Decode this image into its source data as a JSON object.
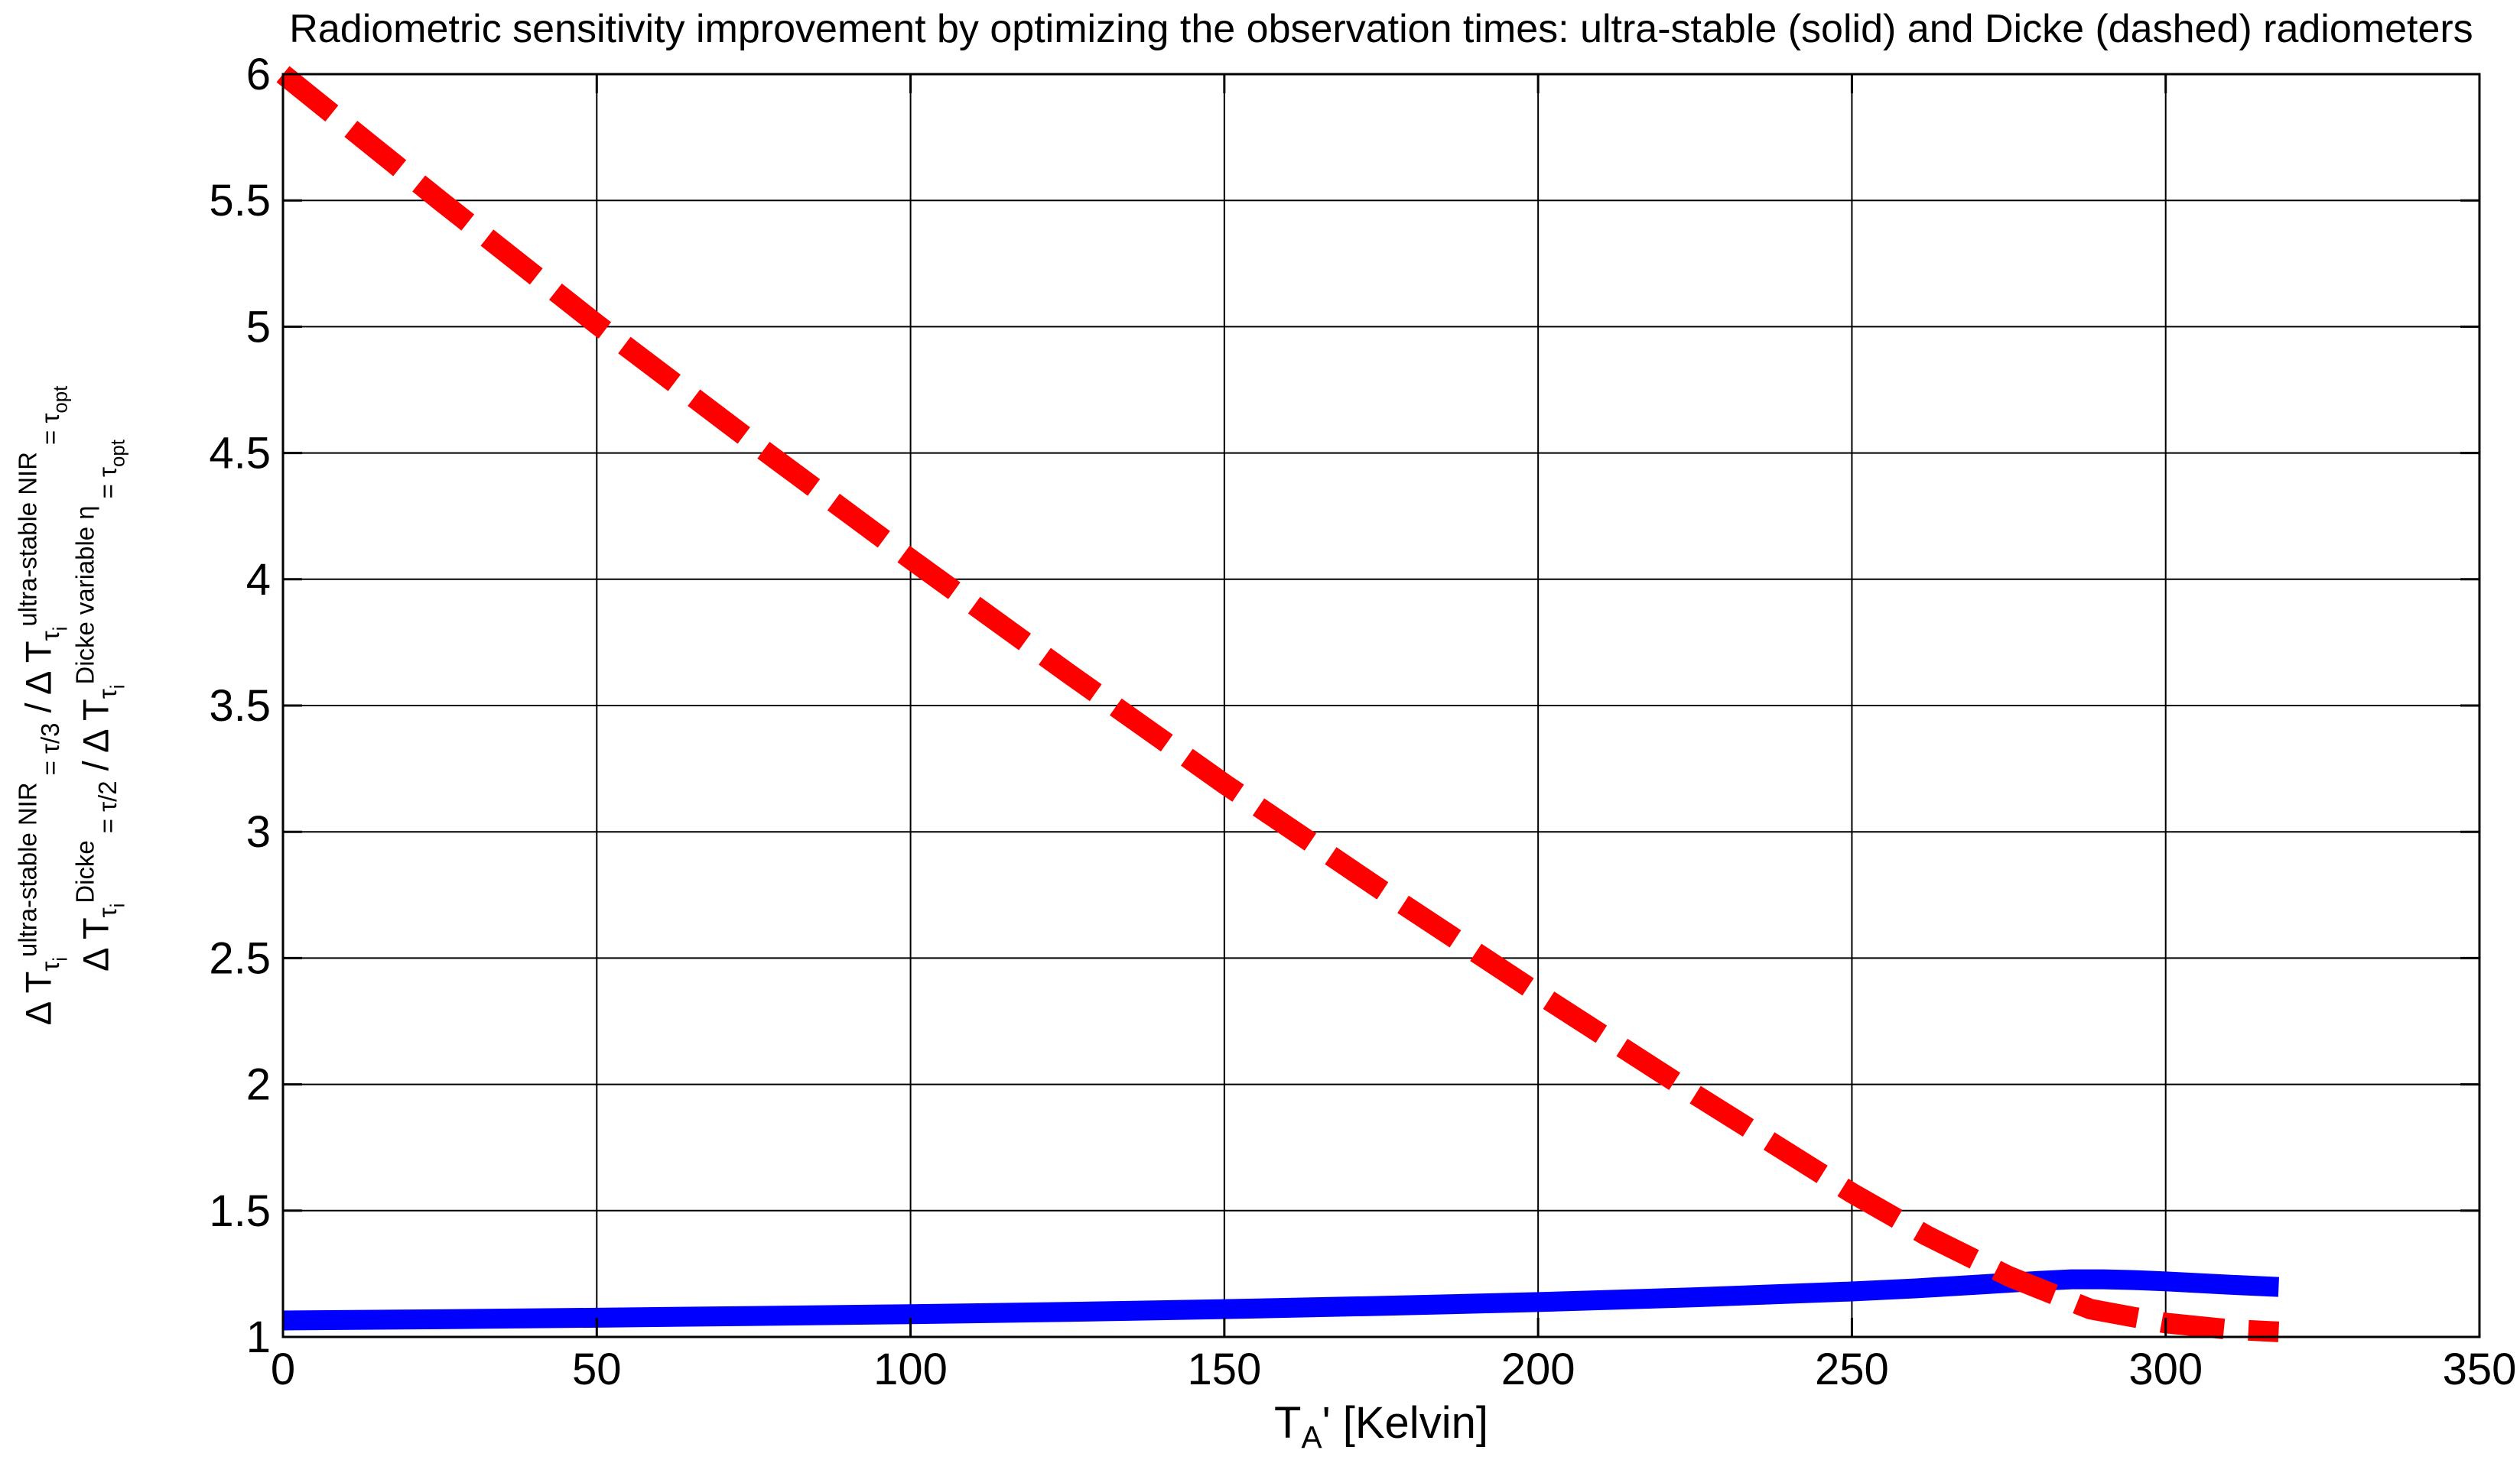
{
  "chart_data": {
    "type": "line",
    "title": "Radiometric sensitivity improvement by optimizing the observation times: ultra-stable (solid) and Dicke (dashed) radiometers",
    "xlabel_plain": "T_A' [Kelvin]",
    "xlabel_runs": [
      {
        "t": "T",
        "l": "n"
      },
      {
        "t": "A",
        "l": "sub"
      },
      {
        "t": "' [Kelvin]",
        "l": "n"
      }
    ],
    "ylabel_plain_lines": [
      "Δ T_{τ_i}^{ultra-stable NIR}_{= τ/3} / Δ T_{τ_i}^{ultra-stable NIR}_{= τ_opt}",
      "Δ T_{τ_i}^{Dicke}_{= τ/2} / Δ T_{τ_i}^{Dicke variable η}_{= τ_opt}"
    ],
    "ylabel_lines_runs": [
      [
        {
          "t": "Δ T",
          "l": "n"
        },
        {
          "t": "τ",
          "l": "sub"
        },
        {
          "t": "i",
          "l": "subsub"
        },
        {
          "t": "ultra-stable NIR",
          "l": "sup"
        },
        {
          "t": " = τ/3",
          "l": "sub"
        },
        {
          "t": " / Δ T",
          "l": "n"
        },
        {
          "t": "τ",
          "l": "sub"
        },
        {
          "t": "i",
          "l": "subsub"
        },
        {
          "t": "ultra-stable NIR",
          "l": "sup"
        },
        {
          "t": " = τ",
          "l": "sub"
        },
        {
          "t": "opt",
          "l": "subsub"
        }
      ],
      [
        {
          "t": "Δ T",
          "l": "n"
        },
        {
          "t": "τ",
          "l": "sub"
        },
        {
          "t": "i",
          "l": "subsub"
        },
        {
          "t": "Dicke",
          "l": "sup"
        },
        {
          "t": " = τ/2",
          "l": "sub"
        },
        {
          "t": " / Δ T",
          "l": "n"
        },
        {
          "t": "τ",
          "l": "sub"
        },
        {
          "t": "i",
          "l": "subsub"
        },
        {
          "t": "Dicke variable η",
          "l": "sup"
        },
        {
          "t": " = τ",
          "l": "sub"
        },
        {
          "t": "opt",
          "l": "subsub"
        }
      ]
    ],
    "xlim": [
      0,
      350
    ],
    "ylim": [
      1,
      6
    ],
    "xticks": [
      0,
      50,
      100,
      150,
      200,
      250,
      300,
      350
    ],
    "yticks": [
      1,
      1.5,
      2,
      2.5,
      3,
      3.5,
      4,
      4.5,
      5,
      5.5,
      6
    ],
    "grid": true,
    "grid_color": "#000000",
    "background_color": "#ffffff",
    "series": [
      {
        "name": "ultra-stable (solid)",
        "color": "#0000ff",
        "style": "solid",
        "line_width": 26,
        "x": [
          0,
          25,
          50,
          75,
          100,
          125,
          150,
          175,
          200,
          225,
          250,
          260,
          270,
          280,
          285,
          290,
          295,
          300,
          310,
          318
        ],
        "y": [
          1.065,
          1.07,
          1.076,
          1.083,
          1.09,
          1.099,
          1.11,
          1.123,
          1.138,
          1.157,
          1.18,
          1.192,
          1.207,
          1.222,
          1.228,
          1.228,
          1.225,
          1.22,
          1.207,
          1.198
        ]
      },
      {
        "name": "Dicke (dashed)",
        "color": "#ff0000",
        "style": "dashed",
        "line_width": 27,
        "x": [
          0,
          25,
          50,
          75,
          100,
          125,
          150,
          175,
          200,
          225,
          250,
          262,
          275,
          288,
          300,
          310,
          318
        ],
        "y": [
          6.0,
          5.5,
          5.01,
          4.54,
          4.08,
          3.63,
          3.19,
          2.77,
          2.36,
          1.96,
          1.57,
          1.4,
          1.24,
          1.11,
          1.055,
          1.03,
          1.02
        ]
      }
    ]
  }
}
